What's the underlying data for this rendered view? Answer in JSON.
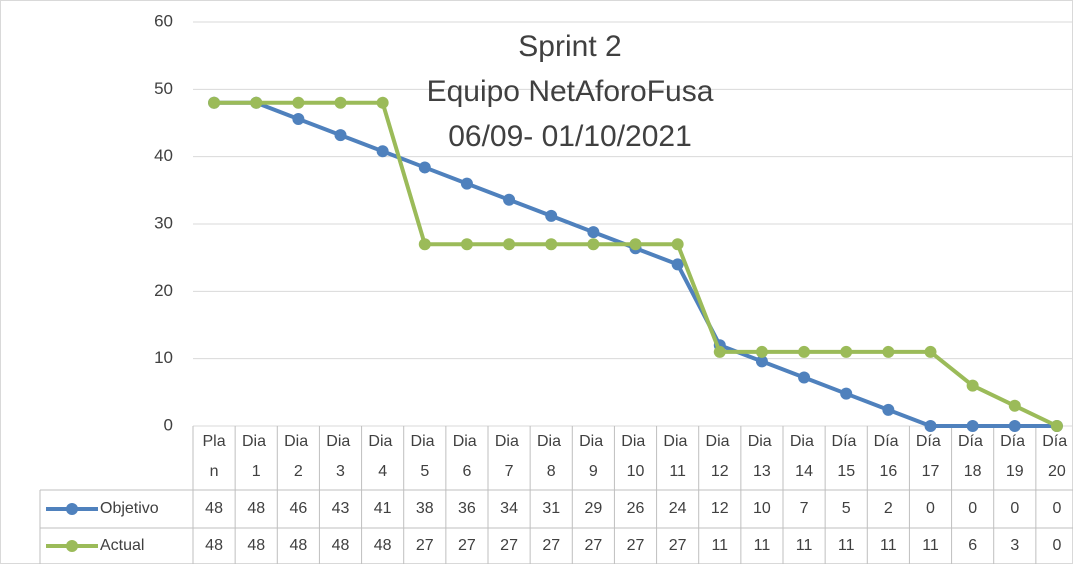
{
  "chart_data": {
    "type": "line",
    "title_lines": [
      "Sprint 2",
      "Equipo NetAforoFusa",
      "06/09- 01/10/2021"
    ],
    "categories": [
      "Plan",
      "Dia 1",
      "Dia 2",
      "Dia 3",
      "Dia 4",
      "Dia 5",
      "Dia 6",
      "Dia 7",
      "Dia 8",
      "Dia 9",
      "Dia 10",
      "Dia 11",
      "Dia 12",
      "Dia 13",
      "Dia 14",
      "Día 15",
      "Día 16",
      "Día 17",
      "Día 18",
      "Día 19",
      "Día 20"
    ],
    "series": [
      {
        "name": "Objetivo",
        "color": "#4f81bd",
        "values": [
          48,
          48,
          45.6,
          43.2,
          40.8,
          38.4,
          36,
          33.6,
          31.2,
          28.8,
          26.4,
          24,
          12,
          9.6,
          7.2,
          4.8,
          2.4,
          0,
          0,
          0,
          0
        ],
        "value_labels": [
          "48",
          "48",
          "46",
          "43",
          "41",
          "38",
          "36",
          "34",
          "31",
          "29",
          "26",
          "24",
          "12",
          "10",
          "7",
          "5",
          "2",
          "0",
          "0",
          "0",
          "0"
        ]
      },
      {
        "name": "Actual",
        "color": "#9bbb59",
        "values": [
          48,
          48,
          48,
          48,
          48,
          27,
          27,
          27,
          27,
          27,
          27,
          27,
          11,
          11,
          11,
          11,
          11,
          11,
          6,
          3,
          0
        ]
      }
    ],
    "ylim": [
      0,
      60
    ],
    "yticks": [
      0,
      10,
      20,
      30,
      40,
      50,
      60
    ],
    "grid": true
  }
}
